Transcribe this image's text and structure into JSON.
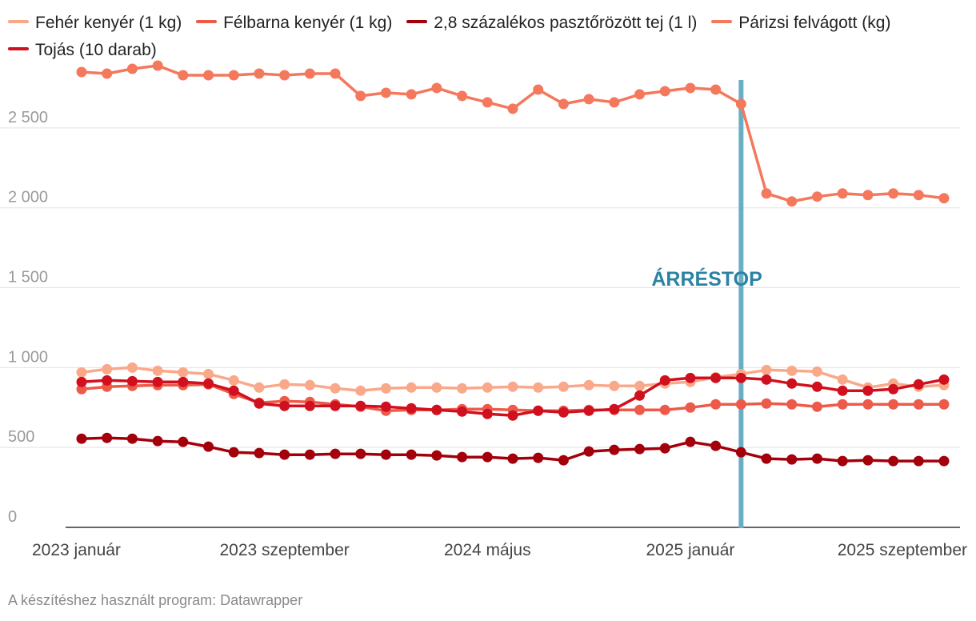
{
  "chart_data": {
    "type": "line",
    "title": "",
    "xlabel": "",
    "ylabel": "",
    "ylim": [
      0,
      2900
    ],
    "yticks": [
      0,
      500,
      1000,
      1500,
      2000,
      2500
    ],
    "ytick_labels": [
      "0",
      "500",
      "1 000",
      "1 500",
      "2 000",
      "2 500"
    ],
    "x_count": 35,
    "xtick_indices": [
      0,
      8,
      16,
      24,
      32
    ],
    "xtick_labels": [
      "2023 január",
      "2023 szeptember",
      "2024 május",
      "2025 január",
      "2025 szeptember"
    ],
    "annotation": {
      "label": "ÁRRÉSTOP",
      "x_index": 26,
      "color": "#6aaec3",
      "text_color": "#2b82a3"
    },
    "series": [
      {
        "name": "Fehér kenyér (1 kg)",
        "color": "#f9a98a",
        "values": [
          970,
          990,
          1000,
          980,
          970,
          960,
          920,
          875,
          895,
          890,
          870,
          855,
          870,
          875,
          875,
          870,
          875,
          880,
          875,
          880,
          890,
          885,
          885,
          900,
          910,
          940,
          960,
          985,
          980,
          975,
          925,
          875,
          900,
          880,
          890
        ]
      },
      {
        "name": "Félbarna kenyér (1 kg)",
        "color": "#ee5a4a",
        "values": [
          865,
          880,
          885,
          890,
          890,
          895,
          835,
          780,
          790,
          785,
          770,
          755,
          730,
          735,
          735,
          740,
          740,
          735,
          730,
          730,
          735,
          735,
          735,
          735,
          750,
          770,
          770,
          775,
          770,
          755,
          770,
          770,
          770,
          770,
          770
        ]
      },
      {
        "name": "2,8 százalékos pasztőrözött tej (1 l)",
        "color": "#a3000c",
        "values": [
          555,
          560,
          555,
          540,
          535,
          505,
          470,
          465,
          455,
          455,
          460,
          460,
          455,
          455,
          450,
          440,
          440,
          430,
          435,
          420,
          475,
          485,
          490,
          495,
          535,
          510,
          470,
          430,
          425,
          430,
          415,
          420,
          415,
          415,
          415
        ]
      },
      {
        "name": "Párizsi felvágott (kg)",
        "color": "#f4785c",
        "values": [
          2850,
          2840,
          2870,
          2890,
          2830,
          2830,
          2830,
          2840,
          2830,
          2840,
          2840,
          2700,
          2720,
          2710,
          2750,
          2700,
          2660,
          2620,
          2740,
          2650,
          2680,
          2660,
          2710,
          2730,
          2750,
          2740,
          2650,
          2090,
          2040,
          2070,
          2090,
          2080,
          2090,
          2080,
          2060
        ]
      },
      {
        "name": "Tojás (10 darab)",
        "color": "#d0101e",
        "values": [
          910,
          920,
          915,
          910,
          910,
          900,
          855,
          775,
          760,
          760,
          760,
          760,
          755,
          745,
          735,
          725,
          710,
          700,
          730,
          720,
          730,
          740,
          825,
          920,
          935,
          935,
          935,
          925,
          900,
          880,
          855,
          855,
          865,
          895,
          925
        ]
      }
    ]
  },
  "footer": {
    "credit": "A készítéshez használt program: Datawrapper"
  }
}
